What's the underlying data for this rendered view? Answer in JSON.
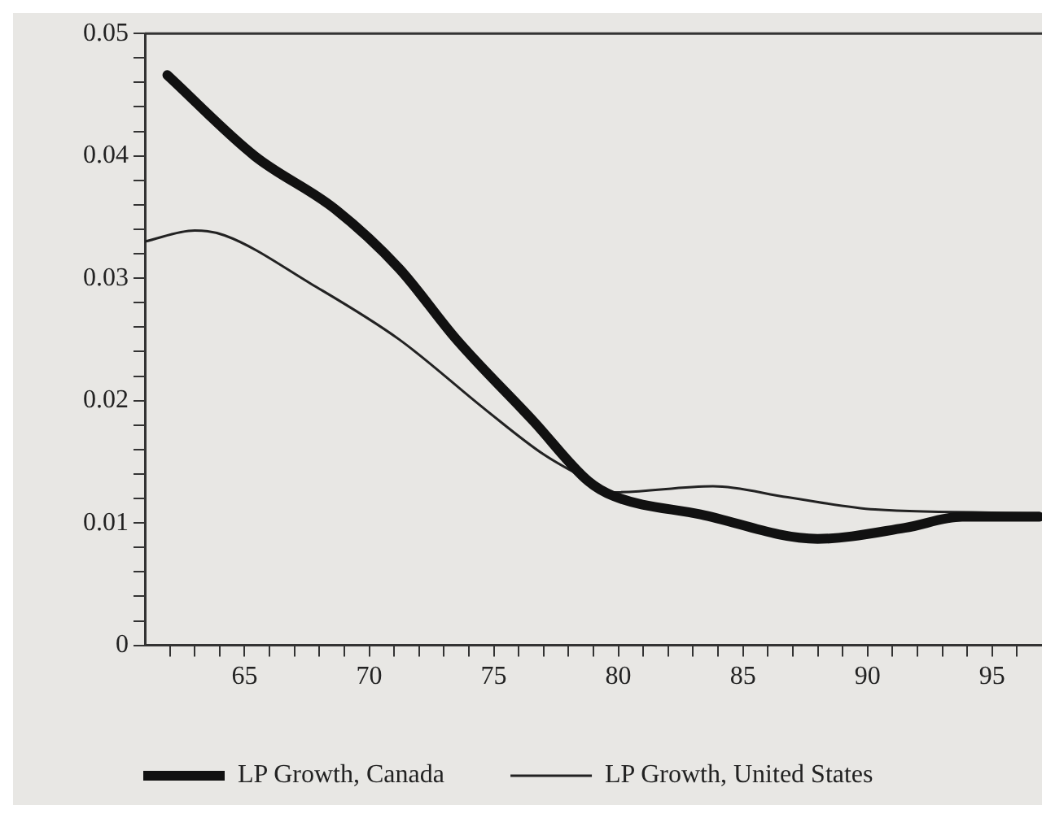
{
  "chart_data": {
    "type": "line",
    "xlim": [
      61,
      97
    ],
    "ylim": [
      0,
      0.05
    ],
    "xticks": [
      {
        "value": 62,
        "label": null
      },
      {
        "value": 63,
        "label": null
      },
      {
        "value": 64,
        "label": null
      },
      65,
      {
        "value": 66,
        "label": null
      },
      {
        "value": 67,
        "label": null
      },
      {
        "value": 68,
        "label": null
      },
      {
        "value": 69,
        "label": null
      },
      70,
      {
        "value": 71,
        "label": null
      },
      {
        "value": 72,
        "label": null
      },
      {
        "value": 73,
        "label": null
      },
      {
        "value": 74,
        "label": null
      },
      75,
      {
        "value": 76,
        "label": null
      },
      {
        "value": 77,
        "label": null
      },
      {
        "value": 78,
        "label": null
      },
      {
        "value": 79,
        "label": null
      },
      80,
      {
        "value": 81,
        "label": null
      },
      {
        "value": 82,
        "label": null
      },
      {
        "value": 83,
        "label": null
      },
      {
        "value": 84,
        "label": null
      },
      85,
      {
        "value": 86,
        "label": null
      },
      {
        "value": 87,
        "label": null
      },
      {
        "value": 88,
        "label": null
      },
      {
        "value": 89,
        "label": null
      },
      90,
      {
        "value": 91,
        "label": null
      },
      {
        "value": 92,
        "label": null
      },
      {
        "value": 93,
        "label": null
      },
      {
        "value": 94,
        "label": null
      },
      95,
      {
        "value": 96,
        "label": null
      }
    ],
    "yticks": [
      0,
      {
        "value": 0.002,
        "label": null
      },
      {
        "value": 0.004,
        "label": null
      },
      {
        "value": 0.006,
        "label": null
      },
      {
        "value": 0.008,
        "label": null
      },
      0.01,
      {
        "value": 0.012,
        "label": null
      },
      {
        "value": 0.014,
        "label": null
      },
      {
        "value": 0.016,
        "label": null
      },
      {
        "value": 0.018,
        "label": null
      },
      0.02,
      {
        "value": 0.022,
        "label": null
      },
      {
        "value": 0.024,
        "label": null
      },
      {
        "value": 0.026,
        "label": null
      },
      {
        "value": 0.028,
        "label": null
      },
      0.03,
      {
        "value": 0.032,
        "label": null
      },
      {
        "value": 0.034,
        "label": null
      },
      {
        "value": 0.036,
        "label": null
      },
      {
        "value": 0.038,
        "label": null
      },
      0.04,
      {
        "value": 0.042,
        "label": null
      },
      {
        "value": 0.044,
        "label": null
      },
      {
        "value": 0.046,
        "label": null
      },
      {
        "value": 0.048,
        "label": null
      },
      0.05
    ],
    "grid": false,
    "legend": "bottom",
    "marker": "none",
    "line_style": "solid",
    "series": [
      {
        "name": "LP Growth, Canada",
        "color": "#111111",
        "x": [
          61.9,
          65.4,
          68.6,
          71.2,
          73.5,
          76.6,
          78.8,
          79.8,
          83.3,
          88.0,
          91.5,
          93.8,
          96.9
        ],
        "values": [
          0.0466,
          0.04,
          0.0357,
          0.0308,
          0.025,
          0.0183,
          0.0134,
          0.0122,
          0.0107,
          0.0087,
          0.0096,
          0.0105,
          0.0105
        ]
      },
      {
        "name": "LP Growth, United States",
        "color": "#222222",
        "x": [
          61.0,
          63.0,
          64.2,
          67.7,
          71.2,
          74.7,
          77.0,
          78.9,
          79.8,
          83.8,
          86.8,
          90.3,
          96.9
        ],
        "values": [
          0.033,
          0.0339,
          0.0335,
          0.0295,
          0.025,
          0.0192,
          0.0156,
          0.0134,
          0.0125,
          0.013,
          0.0121,
          0.0111,
          0.0108
        ]
      }
    ]
  }
}
